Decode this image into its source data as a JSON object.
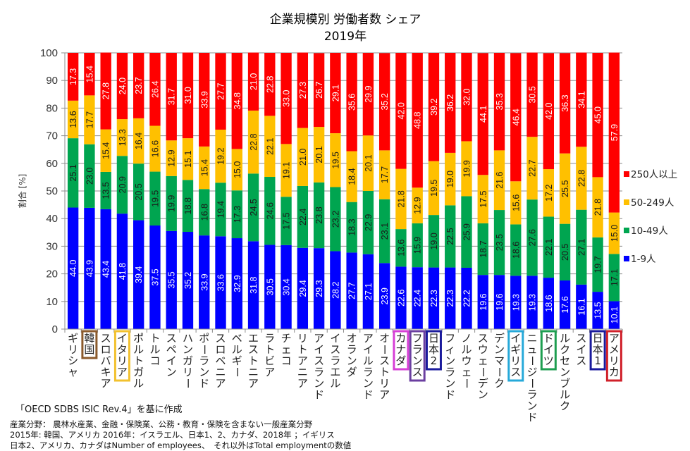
{
  "chart_data": {
    "type": "bar",
    "stacked": true,
    "title": "企業規模別 労働者数 シェア",
    "subtitle": "2019年",
    "xlabel": "",
    "ylabel": "割合 [%]",
    "ylim": [
      0,
      100
    ],
    "yticks": [
      "0",
      "10",
      "20",
      "30",
      "40",
      "50",
      "60",
      "70",
      "80",
      "90",
      "100"
    ],
    "grid": true,
    "legend_position": "right",
    "categories": [
      "ギリシャ",
      "韓国",
      "スロバキア",
      "イタリア",
      "ポルトガル",
      "トルコ",
      "スペイン",
      "ハンガリー",
      "ポーランド",
      "スロベニア",
      "ベルギー",
      "エストニア",
      "ラトビア",
      "チェコ",
      "リトアニア",
      "アイスランド",
      "イスラエル",
      "オランダ",
      "アイルランド",
      "オーストリア",
      "カナダ",
      "フランス",
      "日本2",
      "フィンランド",
      "ノルウェー",
      "スウェーデン",
      "デンマーク",
      "イギリス",
      "ニュージーランド",
      "ドイツ",
      "ルクセンブルク",
      "スイス",
      "日本1",
      "アメリカ"
    ],
    "highlighted_categories": [
      {
        "name": "韓国",
        "color": "#8B5A2B"
      },
      {
        "name": "イタリア",
        "color": "#F2C12E"
      },
      {
        "name": "カナダ",
        "color": "#D63FD6"
      },
      {
        "name": "フランス",
        "color": "#6B3FA0"
      },
      {
        "name": "日本2",
        "color": "#1A1A9C"
      },
      {
        "name": "イギリス",
        "color": "#26A9D9"
      },
      {
        "name": "ドイツ",
        "color": "#1E9E50"
      },
      {
        "name": "日本1",
        "color": "#1A1A9C"
      },
      {
        "name": "アメリカ",
        "color": "#D0202A"
      }
    ],
    "series": [
      {
        "name": "1-9人",
        "color": "#0000FF",
        "label_color": "#FFFFFF",
        "values": [
          44.0,
          43.9,
          43.4,
          41.8,
          39.4,
          37.5,
          35.5,
          35.2,
          33.9,
          33.6,
          32.9,
          31.8,
          30.5,
          30.4,
          29.4,
          29.3,
          28.2,
          27.7,
          27.1,
          23.9,
          22.6,
          22.4,
          22.3,
          22.3,
          22.2,
          19.6,
          19.6,
          19.3,
          19.3,
          18.6,
          17.6,
          16.1,
          13.5,
          10.1
        ]
      },
      {
        "name": "10-49人",
        "color": "#00A550",
        "label_color": "#1a1a1a",
        "values": [
          25.1,
          23.0,
          13.5,
          20.9,
          20.5,
          19.5,
          19.9,
          18.8,
          16.8,
          19.4,
          17.3,
          24.5,
          24.6,
          17.5,
          22.4,
          23.8,
          23.2,
          18.3,
          22.9,
          23.1,
          13.6,
          15.9,
          19.0,
          22.5,
          25.9,
          18.7,
          23.5,
          18.6,
          27.6,
          22.1,
          20.5,
          27.1,
          19.7,
          17.1
        ]
      },
      {
        "name": "50-249人",
        "color": "#FFC000",
        "label_color": "#1a1a1a",
        "values": [
          13.6,
          17.7,
          15.4,
          13.3,
          16.4,
          16.6,
          12.9,
          15.1,
          15.4,
          19.2,
          15.0,
          22.8,
          22.1,
          19.1,
          21.0,
          20.1,
          19.5,
          18.4,
          20.1,
          17.7,
          21.8,
          12.9,
          19.5,
          19.0,
          19.9,
          17.5,
          21.6,
          15.6,
          22.7,
          17.2,
          25.5,
          22.8,
          21.8,
          15.0
        ]
      },
      {
        "name": "250人以上",
        "color": "#FF0000",
        "label_color": "#FFFFFF",
        "values": [
          17.3,
          15.4,
          27.8,
          24.0,
          23.7,
          26.4,
          31.7,
          31.0,
          33.9,
          27.7,
          34.8,
          21.0,
          22.8,
          33.0,
          27.3,
          26.7,
          29.1,
          35.6,
          29.9,
          35.2,
          42.0,
          48.8,
          39.2,
          36.2,
          32.0,
          44.1,
          35.3,
          46.4,
          30.5,
          42.0,
          36.3,
          34.1,
          45.0,
          57.9
        ]
      }
    ]
  },
  "notes": {
    "source": "「OECD SDBS ISIC Rev.4」を基に作成",
    "lines": [
      "産業分野： 農林水産業、金融・保険業、公務・教育・保険を含まない一般産業分野",
      "2015年: 韓国、アメリカ 2016年：イスラエル、日本1、2、カナダ、2018年 ；イギリス",
      "日本2、アメリカ、カナダはNumber of employees、　それ以外はTotal employmentの数値"
    ]
  }
}
